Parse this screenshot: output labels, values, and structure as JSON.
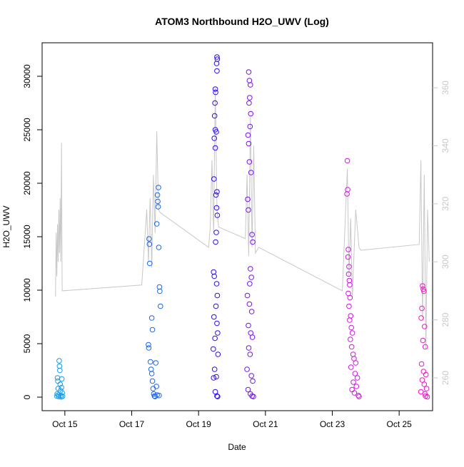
{
  "chart_data": {
    "type": "scatter",
    "title": "ATOM3 Northbound H2O_UWV (Log)",
    "x_label": "Date",
    "y_label": "H2O_UWV",
    "xlim": [
      14.32,
      26.0
    ],
    "xticks": [
      {
        "value": 15,
        "label": "Oct 15"
      },
      {
        "value": 17,
        "label": "Oct 17"
      },
      {
        "value": 19,
        "label": "Oct 19"
      },
      {
        "value": 21,
        "label": "Oct 21"
      },
      {
        "value": 23,
        "label": "Oct 23"
      },
      {
        "value": 25,
        "label": "Oct 25"
      }
    ],
    "ylim": [
      -1267,
      33133
    ],
    "yticks": [
      0,
      5000,
      10000,
      15000,
      20000,
      25000,
      30000
    ],
    "y2lim": [
      248.7,
      375.5
    ],
    "y2ticks": [
      260,
      280,
      300,
      320,
      340,
      360
    ],
    "y2color": "#c8c8c8",
    "series": [
      {
        "color": "#1a9de8",
        "x": [
          14.76,
          14.77,
          14.78,
          14.79,
          14.8,
          14.81,
          14.82,
          14.83,
          14.84,
          14.85,
          14.86,
          14.87,
          14.88,
          14.89,
          14.9,
          14.91,
          14.92,
          14.93
        ],
        "values": [
          100,
          300,
          1800,
          1500,
          800,
          200,
          50,
          3400,
          2900,
          2500,
          1200,
          600,
          150,
          20,
          900,
          1700,
          400,
          80
        ]
      },
      {
        "color": "#1a66f0",
        "x": [
          17.52,
          17.53,
          17.54,
          17.5,
          17.51,
          17.56,
          17.58,
          17.6,
          17.62,
          17.64,
          17.66,
          17.68,
          17.7,
          17.6,
          17.62,
          17.78,
          17.77,
          17.8,
          17.79,
          17.75,
          17.81,
          17.83,
          17.84,
          17.86,
          17.72,
          17.74,
          17.76,
          17.82
        ],
        "values": [
          14800,
          14300,
          12500,
          4900,
          4600,
          3300,
          2600,
          2200,
          1500,
          800,
          300,
          100,
          50,
          7400,
          6300,
          18300,
          18900,
          19600,
          17800,
          16200,
          14000,
          10300,
          9900,
          8500,
          3200,
          1000,
          200,
          150
        ]
      },
      {
        "color": "#2a10e6",
        "x": [
          19.55,
          19.56,
          19.54,
          19.55,
          19.5,
          19.51,
          19.49,
          19.48,
          19.5,
          19.53,
          19.47,
          19.5,
          19.46,
          19.55,
          19.52,
          19.54,
          19.56,
          19.53,
          19.51,
          19.45,
          19.47,
          19.54,
          19.56,
          19.52,
          19.46,
          19.55,
          19.57,
          19.49,
          19.44,
          19.58,
          19.48,
          19.53,
          19.45,
          19.5,
          19.55,
          19.57
        ],
        "values": [
          31800,
          31600,
          31200,
          30500,
          28800,
          28500,
          27500,
          26300,
          25000,
          24800,
          24200,
          23300,
          20400,
          19200,
          18900,
          17700,
          17000,
          15400,
          14500,
          11700,
          11300,
          10600,
          9500,
          8500,
          7500,
          6900,
          6000,
          5500,
          4500,
          4000,
          2600,
          1900,
          1800,
          500,
          100,
          50
        ]
      },
      {
        "color": "#7a10ee",
        "x": [
          20.5,
          20.52,
          20.55,
          20.53,
          20.51,
          20.56,
          20.54,
          20.48,
          20.5,
          20.52,
          20.57,
          20.47,
          20.49,
          20.6,
          20.62,
          20.55,
          20.58,
          20.53,
          20.46,
          20.52,
          20.59,
          20.49,
          20.56,
          20.61,
          20.5,
          20.54,
          20.45,
          20.58,
          20.62,
          20.48,
          20.55,
          20.6,
          20.64
        ],
        "values": [
          30400,
          29600,
          29200,
          28000,
          27500,
          26500,
          25300,
          24500,
          23700,
          22000,
          21000,
          18500,
          17500,
          15200,
          14500,
          12000,
          11200,
          10600,
          9500,
          8700,
          8000,
          6700,
          6000,
          5600,
          4600,
          4000,
          2600,
          2000,
          1500,
          700,
          300,
          100,
          50
        ]
      },
      {
        "color": "#d018e0",
        "x": [
          23.45,
          23.46,
          23.44,
          23.48,
          23.47,
          23.5,
          23.49,
          23.51,
          23.52,
          23.48,
          23.53,
          23.5,
          23.55,
          23.52,
          23.57,
          23.6,
          23.54,
          23.58,
          23.62,
          23.65,
          23.7,
          23.56,
          23.68,
          23.75,
          23.63,
          23.72,
          23.59,
          23.66,
          23.78,
          23.8
        ],
        "values": [
          22100,
          19400,
          19000,
          13800,
          13100,
          12200,
          11500,
          10900,
          10500,
          9700,
          9300,
          8500,
          7600,
          7200,
          6500,
          6000,
          5400,
          4700,
          4000,
          3600,
          3200,
          2800,
          2200,
          1800,
          1400,
          1000,
          700,
          400,
          150,
          50
        ]
      },
      {
        "color": "#f514c8",
        "x": [
          25.7,
          25.72,
          25.74,
          25.68,
          25.66,
          25.76,
          25.71,
          25.78,
          25.67,
          25.73,
          25.8,
          25.69,
          25.75,
          25.82,
          25.65,
          25.77,
          25.79,
          25.84
        ],
        "values": [
          10400,
          10100,
          9900,
          8300,
          7400,
          6600,
          5300,
          4700,
          3100,
          2400,
          2100,
          1600,
          1200,
          800,
          500,
          300,
          100,
          30
        ]
      },
      {
        "type": "line",
        "axis": "y2",
        "color": "#c8c8c8",
        "x": [
          14.72,
          14.74,
          14.76,
          14.78,
          14.8,
          14.82,
          14.84,
          14.86,
          14.88,
          14.9,
          14.92,
          17.3,
          17.45,
          17.5,
          17.55,
          17.6,
          17.65,
          17.7,
          17.75,
          17.8,
          17.85,
          19.3,
          19.35,
          19.4,
          19.45,
          19.5,
          19.55,
          19.6,
          20.4,
          20.45,
          20.5,
          20.55,
          20.6,
          20.65,
          20.7,
          20.8,
          23.3,
          23.45,
          23.5,
          23.55,
          23.6,
          23.7,
          23.8,
          23.85,
          25.6,
          25.65,
          25.7,
          25.75,
          25.8,
          25.85,
          25.9
        ],
        "values": [
          288,
          310,
          295,
          313,
          300,
          318,
          303,
          322,
          300,
          341,
          290,
          292,
          318,
          300,
          322,
          298,
          330,
          310,
          345,
          318,
          317,
          305,
          312,
          335,
          310,
          360,
          318,
          312,
          308,
          330,
          302,
          350,
          305,
          340,
          303,
          305,
          290,
          332,
          295,
          315,
          288,
          318,
          305,
          304,
          306,
          335,
          280,
          330,
          270,
          318,
          300
        ]
      }
    ]
  }
}
